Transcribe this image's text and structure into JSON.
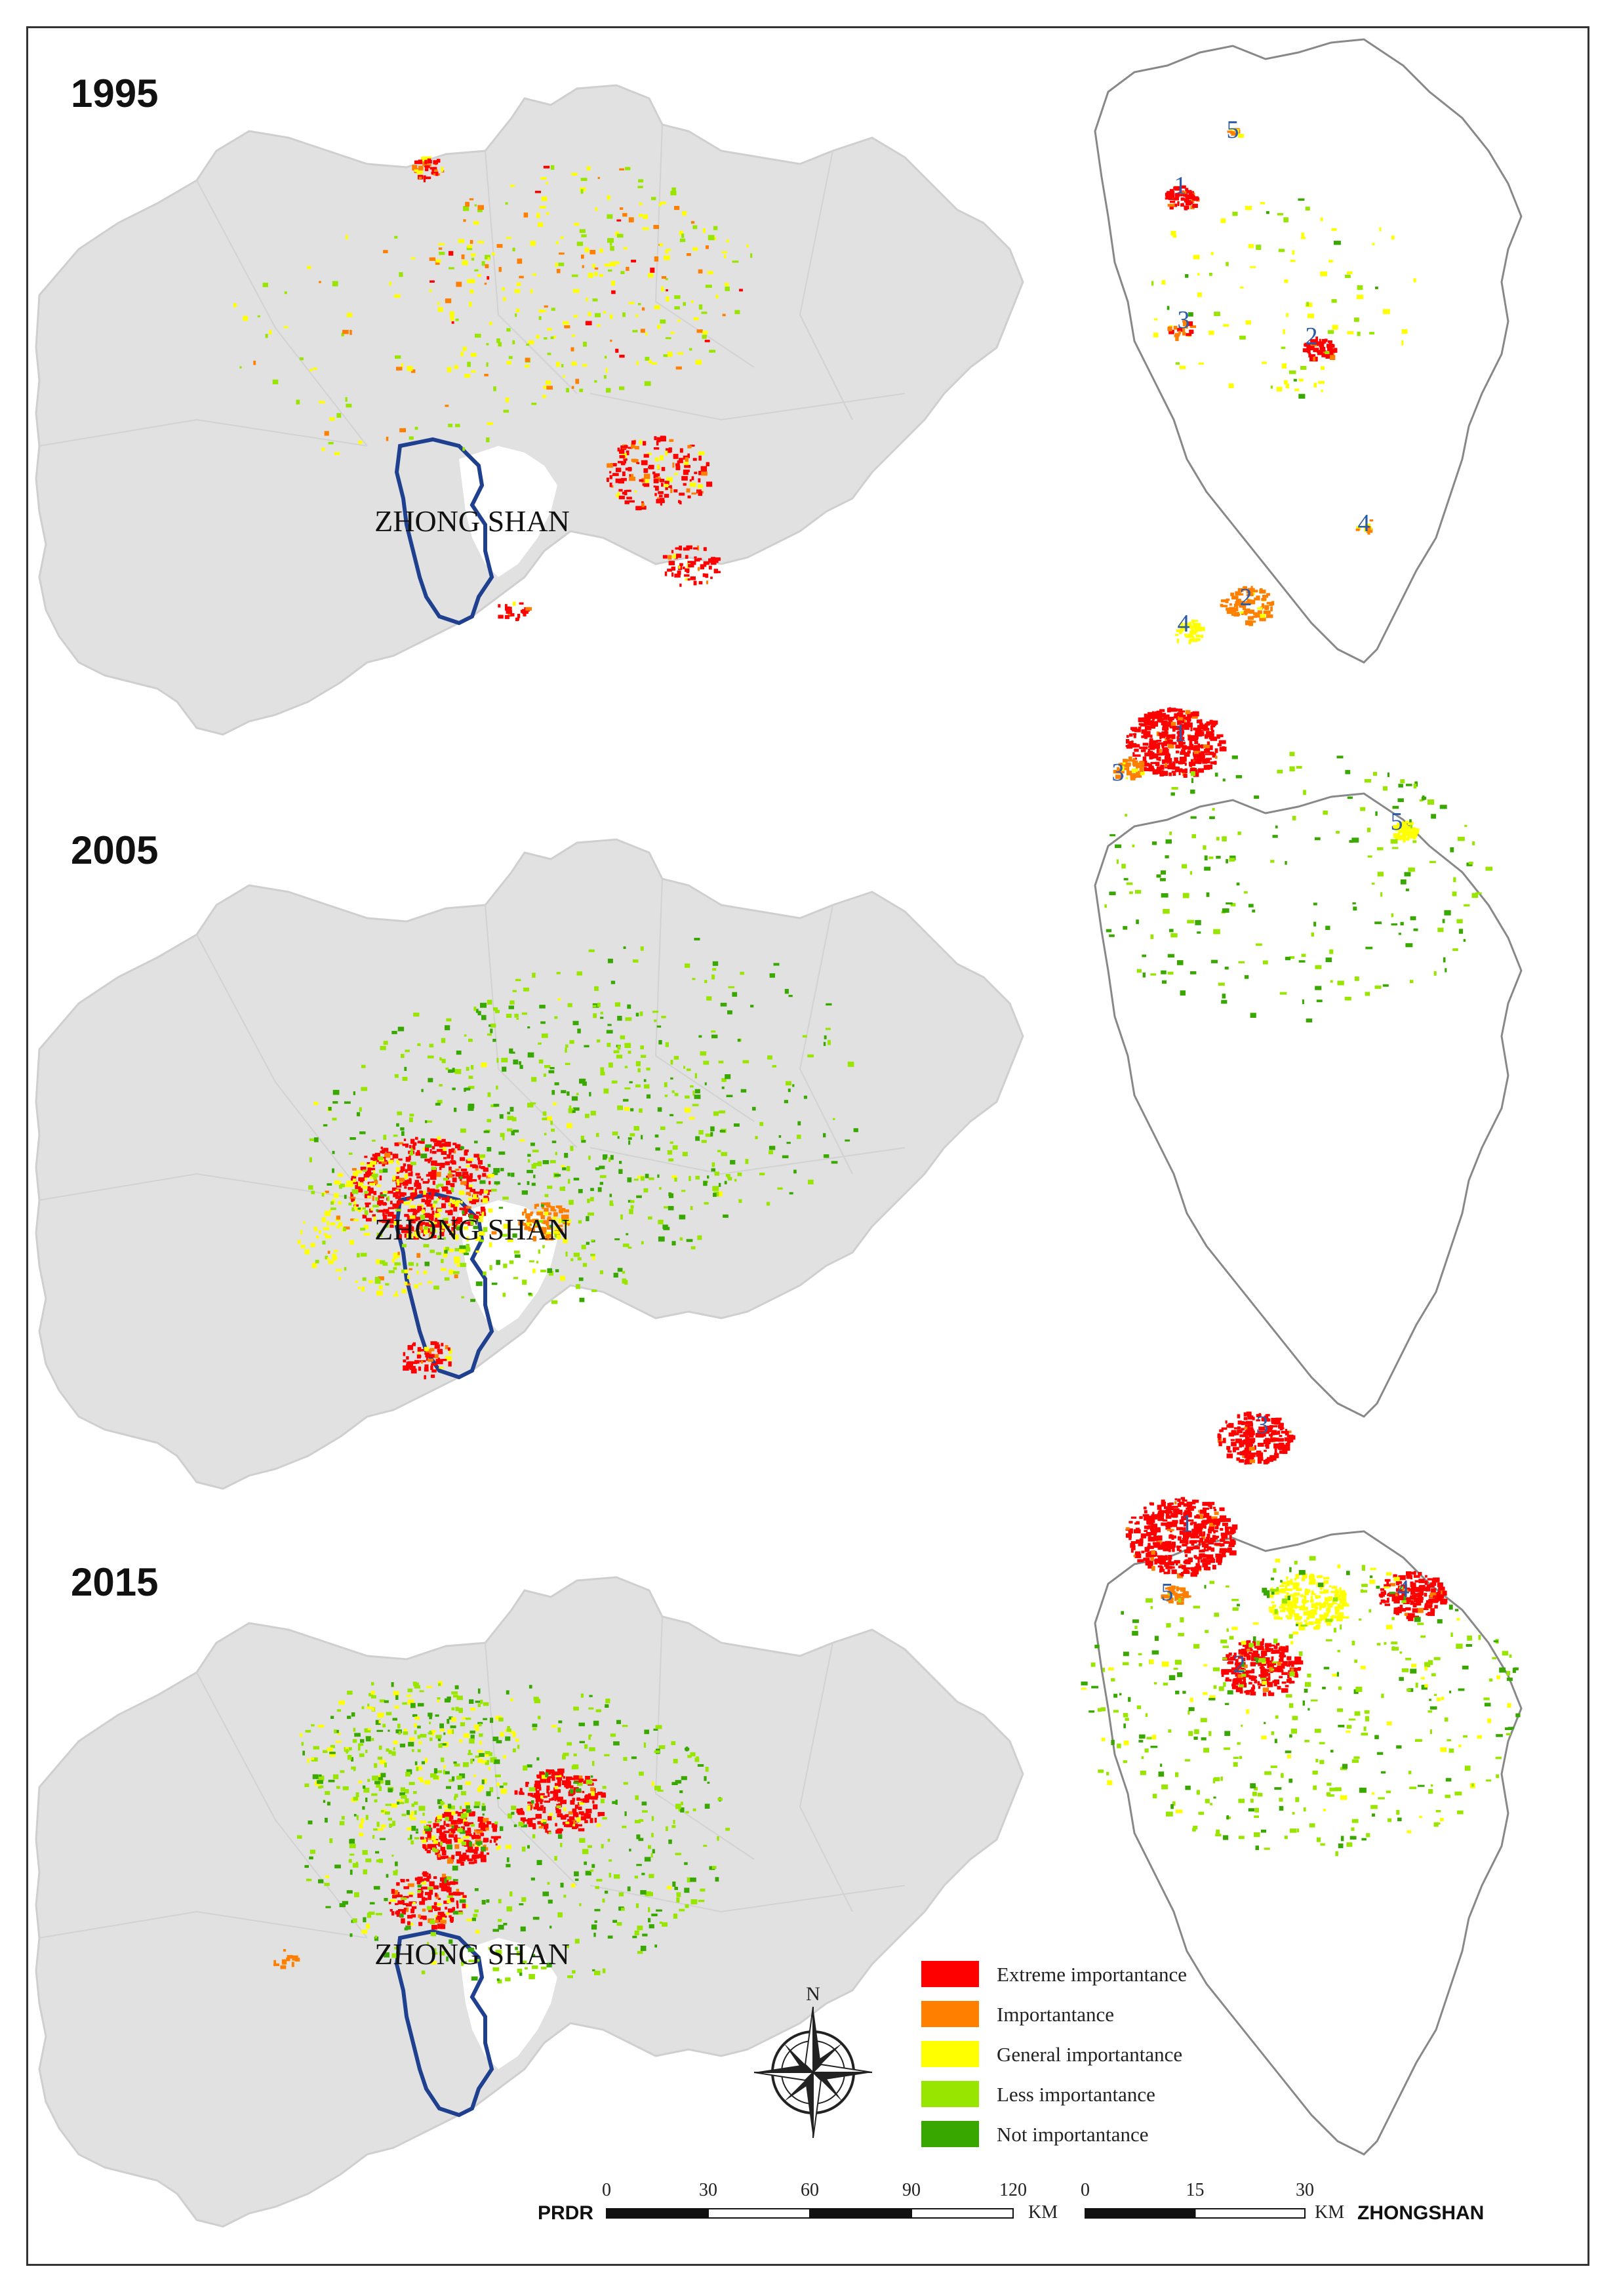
{
  "panels": [
    {
      "year": "1995",
      "prdr_label": "ZHONG SHAN",
      "zhongshan_numbers": [
        "5",
        "1",
        "3",
        "2",
        "4"
      ]
    },
    {
      "year": "2005",
      "prdr_label": "ZHONG SHAN",
      "zhongshan_numbers": [
        "2",
        "4",
        "1",
        "3",
        "5"
      ]
    },
    {
      "year": "2015",
      "prdr_label": "ZHONG SHAN",
      "zhongshan_numbers": [
        "3",
        "1",
        "5",
        "2",
        "4"
      ]
    }
  ],
  "legend": [
    {
      "label": "Extreme importantance",
      "color": "#ff0000"
    },
    {
      "label": "Importantance",
      "color": "#ff7f00"
    },
    {
      "label": "General importantance",
      "color": "#ffff00"
    },
    {
      "label": " Less importantance",
      "color": "#98e600"
    },
    {
      "label": "Not importantance",
      "color": "#38a800"
    }
  ],
  "north_arrow": {
    "label": "N",
    "icon": "compass-rose-icon"
  },
  "scalebars": {
    "prdr": {
      "name": "PRDR",
      "ticks": [
        "0",
        "30",
        "60",
        "90",
        "120"
      ],
      "unit": "KM"
    },
    "zhongshan": {
      "name": "ZHONGSHAN",
      "ticks": [
        "0",
        "15",
        "30"
      ],
      "unit": "KM"
    }
  },
  "colors": {
    "region_fill": "#e1e1e1",
    "region_border": "#cfcfcf",
    "zhongshan_outline": "#1f3f8f",
    "number_color": "#2a5aa8"
  }
}
